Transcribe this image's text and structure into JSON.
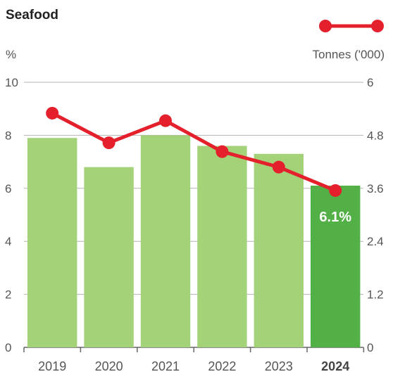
{
  "chart_data": {
    "type": "bar+line",
    "title": "Seafood",
    "left_axis": {
      "label": "%",
      "ticks": [
        "0",
        "2",
        "4",
        "6",
        "8",
        "10"
      ],
      "ylim": [
        0,
        10
      ]
    },
    "right_axis": {
      "label": "Tonnes ('000)",
      "ticks": [
        "0",
        "1.2",
        "2.4",
        "3.6",
        "4.8",
        "6"
      ],
      "ylim": [
        0,
        6
      ]
    },
    "categories": [
      "2019",
      "2020",
      "2021",
      "2022",
      "2023",
      "2024"
    ],
    "bars": {
      "axis": "left",
      "values": [
        7.9,
        6.8,
        8.0,
        7.6,
        7.3,
        6.1
      ],
      "color": "#a3d279",
      "highlight_color": "#52b046",
      "highlight_index": 5,
      "highlight_label": "6.1%"
    },
    "line": {
      "axis": "right",
      "values": [
        5.3,
        4.63,
        5.13,
        4.43,
        4.08,
        3.55
      ],
      "color": "#e3202b"
    },
    "grid": true,
    "legend": {
      "position": "top-right",
      "marker": "line-with-dots"
    }
  }
}
